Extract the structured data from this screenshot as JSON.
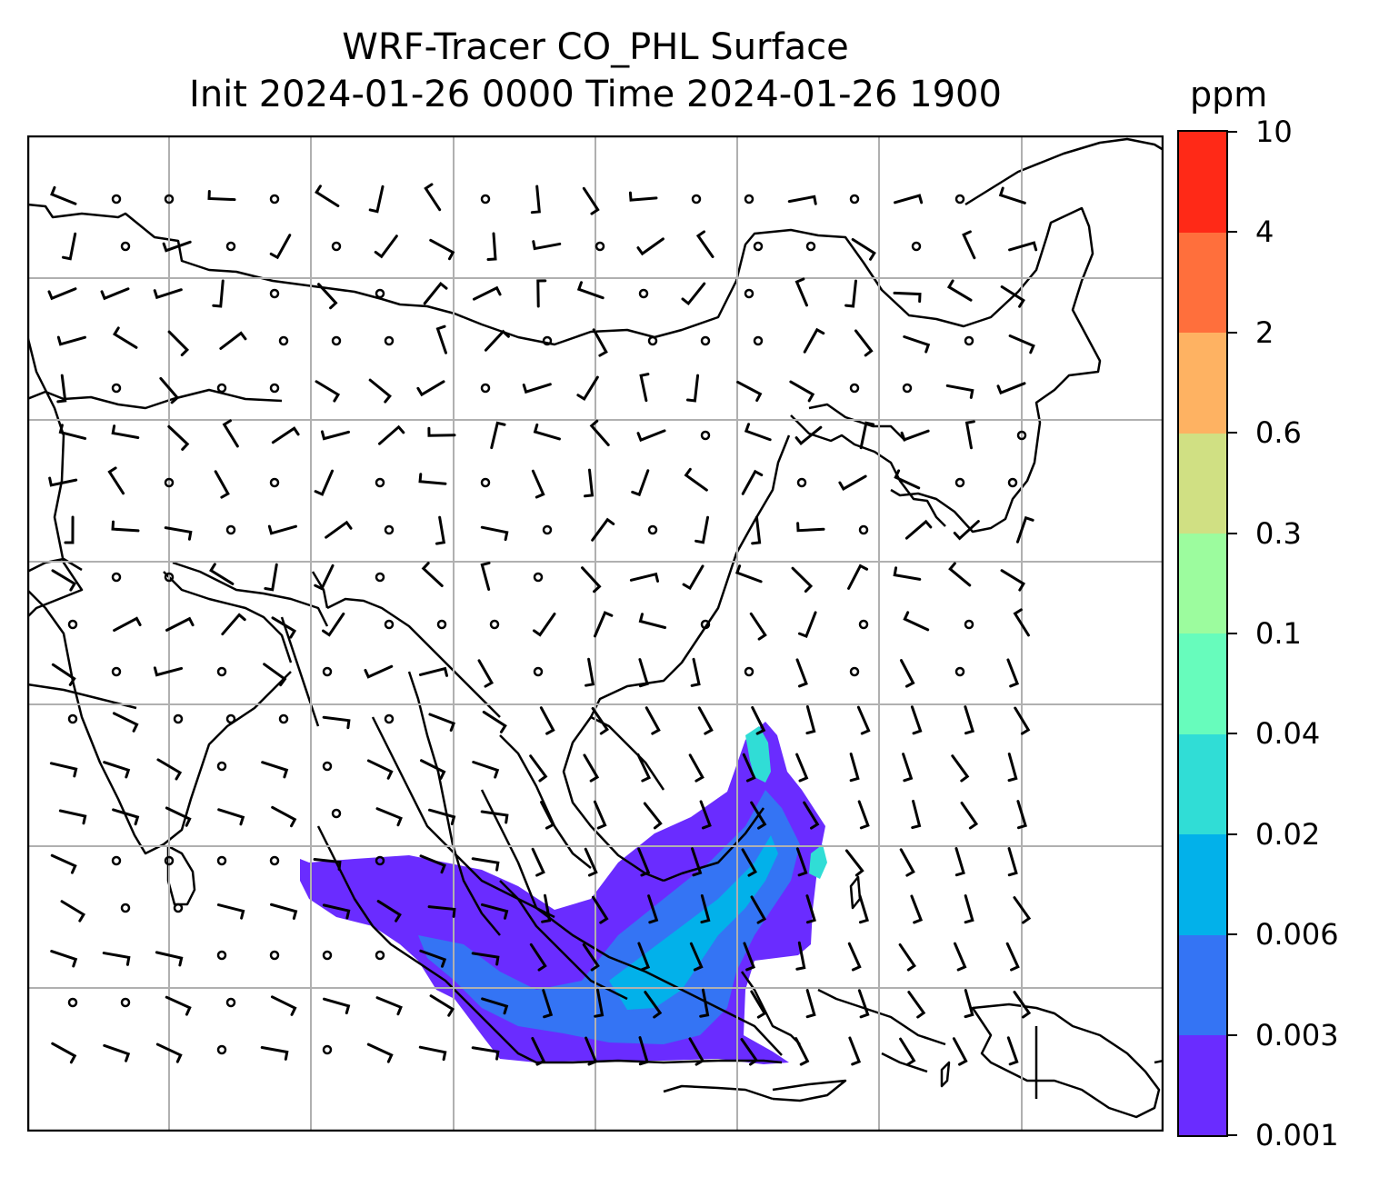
{
  "title": {
    "line1": "WRF-Tracer CO_PHL Surface",
    "line2": "Init 2024-01-26 0000 Time 2024-01-26 1900"
  },
  "colorbar": {
    "unit": "ppm",
    "levels": [
      "0.001",
      "0.003",
      "0.006",
      "0.02",
      "0.04",
      "0.1",
      "0.3",
      "0.6",
      "2",
      "4",
      "10"
    ],
    "colors": [
      "#6a2cff",
      "#3474f4",
      "#02b1ea",
      "#30ddd6",
      "#67fcbc",
      "#9cfc9e",
      "#d0e083",
      "#feb262",
      "#ff6f3c",
      "#ff2917"
    ]
  },
  "map": {
    "coastline_color": "#000000",
    "gridline_color": "#b0b0b0",
    "plume_colors": {
      "outer": "#6a2cff",
      "mid": "#3474f4",
      "inner": "#02b1ea",
      "core": "#30ddd6"
    }
  }
}
